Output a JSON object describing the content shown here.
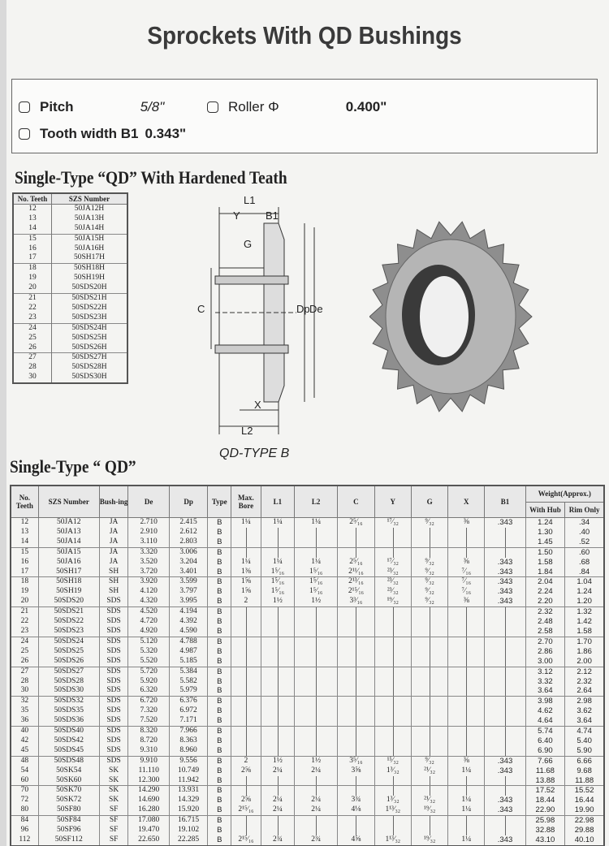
{
  "title": "Sprockets With QD Bushings",
  "specs": {
    "pitch_label": "Pitch",
    "pitch_value": "5/8\"",
    "roller_label": "Roller Φ",
    "roller_value": "0.400\"",
    "tooth_label": "Tooth width B1",
    "tooth_value": "0.343\""
  },
  "hardened": {
    "heading": "Single-Type “QD” With Hardened Teath",
    "headers": [
      "No. Teeth",
      "SZS Number"
    ],
    "rows": [
      [
        "12",
        "50JA12H"
      ],
      [
        "13",
        "50JA13H"
      ],
      [
        "14",
        "50JA14H"
      ],
      [
        "15",
        "50JA15H"
      ],
      [
        "16",
        "50JA16H"
      ],
      [
        "17",
        "50SH17H"
      ],
      [
        "18",
        "50SH18H"
      ],
      [
        "19",
        "50SH19H"
      ],
      [
        "20",
        "50SDS20H"
      ],
      [
        "21",
        "50SDS21H"
      ],
      [
        "22",
        "50SDS22H"
      ],
      [
        "23",
        "50SDS23H"
      ],
      [
        "24",
        "50SDS24H"
      ],
      [
        "25",
        "50SDS25H"
      ],
      [
        "26",
        "50SDS26H"
      ],
      [
        "27",
        "50SDS27H"
      ],
      [
        "28",
        "50SDS28H"
      ],
      [
        "30",
        "50SDS30H"
      ]
    ]
  },
  "diagram": {
    "labels": [
      "L1",
      "Y",
      "B1",
      "G",
      "C",
      "Dp",
      "De",
      "X",
      "L2"
    ],
    "caption": "QD-TYPE B"
  },
  "single": {
    "heading": "Single-Type “ QD”",
    "weight_header": "Weight(Approx.)",
    "headers": [
      "No. Teeth",
      "SZS Number",
      "Bush-ing",
      "De",
      "Dp",
      "Type",
      "Max. Bore",
      "L1",
      "L2",
      "C",
      "Y",
      "G",
      "X",
      "B1",
      "With Hub",
      "Rim Only"
    ],
    "rows": [
      [
        "12",
        "50JA12",
        "JA",
        "2.710",
        "2.415",
        "B",
        "1¼",
        "1¼",
        "1¼",
        "2⁵⁄₁₆",
        "¹⁷⁄₃₂",
        "⁹⁄₃₂",
        "⅜",
        ".343",
        "1.24",
        ".34"
      ],
      [
        "13",
        "50JA13",
        "JA",
        "2.910",
        "2.612",
        "B",
        "",
        "",
        "",
        "",
        "",
        "",
        "",
        "",
        "1.30",
        ".40"
      ],
      [
        "14",
        "50JA14",
        "JA",
        "3.110",
        "2.803",
        "B",
        "",
        "",
        "",
        "",
        "",
        "",
        "",
        "",
        "1.45",
        ".52"
      ],
      [
        "15",
        "50JA15",
        "JA",
        "3.320",
        "3.006",
        "B",
        "",
        "",
        "",
        "",
        "",
        "",
        "",
        "",
        "1.50",
        ".60"
      ],
      [
        "16",
        "50JA16",
        "JA",
        "3.520",
        "3.204",
        "B",
        "1¼",
        "1¼",
        "1¼",
        "2⁵⁄₁₆",
        "¹⁷⁄₃₂",
        "⁹⁄₃₂",
        "⅜",
        ".343",
        "1.58",
        ".68"
      ],
      [
        "17",
        "50SH17",
        "SH",
        "3.720",
        "3.401",
        "B",
        "1⅜",
        "1⁵⁄₁₆",
        "1⁵⁄₁₆",
        "2¹¹⁄₁₆",
        "²³⁄₃₂",
        "⁹⁄₃₂",
        "⁷⁄₁₆",
        ".343",
        "1.84",
        ".84"
      ],
      [
        "18",
        "50SH18",
        "SH",
        "3.920",
        "3.599",
        "B",
        "1⅝",
        "1⁵⁄₁₆",
        "1⁵⁄₁₆",
        "2¹³⁄₁₆",
        "²³⁄₃₂",
        "⁹⁄₃₂",
        "⁷⁄₁₆",
        ".343",
        "2.04",
        "1.04"
      ],
      [
        "19",
        "50SH19",
        "SH",
        "4.120",
        "3.797",
        "B",
        "1⅝",
        "1⁵⁄₁₆",
        "1⁵⁄₁₆",
        "2¹⁵⁄₁₆",
        "²³⁄₃₂",
        "⁹⁄₃₂",
        "⁷⁄₁₆",
        ".343",
        "2.24",
        "1.24"
      ],
      [
        "20",
        "50SDS20",
        "SDS",
        "4.320",
        "3.995",
        "B",
        "2",
        "1½",
        "1½",
        "3³⁄₁₆",
        "¹⁹⁄₃₂",
        "⁹⁄₃₂",
        "⅜",
        ".343",
        "2.20",
        "1.20"
      ],
      [
        "21",
        "50SDS21",
        "SDS",
        "4.520",
        "4.194",
        "B",
        "",
        "",
        "",
        "",
        "",
        "",
        "",
        "",
        "2.32",
        "1.32"
      ],
      [
        "22",
        "50SDS22",
        "SDS",
        "4.720",
        "4.392",
        "B",
        "",
        "",
        "",
        "",
        "",
        "",
        "",
        "",
        "2.48",
        "1.42"
      ],
      [
        "23",
        "50SDS23",
        "SDS",
        "4.920",
        "4.590",
        "B",
        "",
        "",
        "",
        "",
        "",
        "",
        "",
        "",
        "2.58",
        "1.58"
      ],
      [
        "24",
        "50SDS24",
        "SDS",
        "5.120",
        "4.788",
        "B",
        "",
        "",
        "",
        "",
        "",
        "",
        "",
        "",
        "2.70",
        "1.70"
      ],
      [
        "25",
        "50SDS25",
        "SDS",
        "5.320",
        "4.987",
        "B",
        "",
        "",
        "",
        "",
        "",
        "",
        "",
        "",
        "2.86",
        "1.86"
      ],
      [
        "26",
        "50SDS26",
        "SDS",
        "5.520",
        "5.185",
        "B",
        "",
        "",
        "",
        "",
        "",
        "",
        "",
        "",
        "3.00",
        "2.00"
      ],
      [
        "27",
        "50SDS27",
        "SDS",
        "5.720",
        "5.384",
        "B",
        "",
        "",
        "",
        "",
        "",
        "",
        "",
        "",
        "3.12",
        "2.12"
      ],
      [
        "28",
        "50SDS28",
        "SDS",
        "5.920",
        "5.582",
        "B",
        "",
        "",
        "",
        "",
        "",
        "",
        "",
        "",
        "3.32",
        "2.32"
      ],
      [
        "30",
        "50SDS30",
        "SDS",
        "6.320",
        "5.979",
        "B",
        "",
        "",
        "",
        "",
        "",
        "",
        "",
        "",
        "3.64",
        "2.64"
      ],
      [
        "32",
        "50SDS32",
        "SDS",
        "6.720",
        "6.376",
        "B",
        "",
        "",
        "",
        "",
        "",
        "",
        "",
        "",
        "3.98",
        "2.98"
      ],
      [
        "35",
        "50SDS35",
        "SDS",
        "7.320",
        "6.972",
        "B",
        "",
        "",
        "",
        "",
        "",
        "",
        "",
        "",
        "4.62",
        "3.62"
      ],
      [
        "36",
        "50SDS36",
        "SDS",
        "7.520",
        "7.171",
        "B",
        "",
        "",
        "",
        "",
        "",
        "",
        "",
        "",
        "4.64",
        "3.64"
      ],
      [
        "40",
        "50SDS40",
        "SDS",
        "8.320",
        "7.966",
        "B",
        "",
        "",
        "",
        "",
        "",
        "",
        "",
        "",
        "5.74",
        "4.74"
      ],
      [
        "42",
        "50SDS42",
        "SDS",
        "8.720",
        "8.363",
        "B",
        "",
        "",
        "",
        "",
        "",
        "",
        "",
        "",
        "6.40",
        "5.40"
      ],
      [
        "45",
        "50SDS45",
        "SDS",
        "9.310",
        "8.960",
        "B",
        "",
        "",
        "",
        "",
        "",
        "",
        "",
        "",
        "6.90",
        "5.90"
      ],
      [
        "48",
        "50SDS48",
        "SDS",
        "9.910",
        "9.556",
        "B",
        "2",
        "1½",
        "1½",
        "3⁵⁄₁₆",
        "¹⁵⁄₃₂",
        "⁹⁄₃₂",
        "⅜",
        ".343",
        "7.66",
        "6.66"
      ],
      [
        "54",
        "50SK54",
        "SK",
        "11.110",
        "10.749",
        "B",
        "2⅝",
        "2¼",
        "2¼",
        "3⅝",
        "1³⁄₃₂",
        "²¹⁄₃₂",
        "1¼",
        ".343",
        "11.68",
        "9.68"
      ],
      [
        "60",
        "50SK60",
        "SK",
        "12.300",
        "11.942",
        "B",
        "",
        "",
        "",
        "",
        "",
        "",
        "",
        "",
        "13.88",
        "11.88"
      ],
      [
        "70",
        "50SK70",
        "SK",
        "14.290",
        "13.931",
        "B",
        "",
        "",
        "",
        "",
        "",
        "",
        "",
        "",
        "17.52",
        "15.52"
      ],
      [
        "72",
        "50SK72",
        "SK",
        "14.690",
        "14.329",
        "B",
        "2⅝",
        "2¼",
        "2¼",
        "3¾",
        "1³⁄₃₂",
        "²¹⁄₃₂",
        "1¼",
        ".343",
        "18.44",
        "16.44"
      ],
      [
        "80",
        "50SF80",
        "SF",
        "16.280",
        "15.920",
        "B",
        "2¹⁵⁄₁₆",
        "2¼",
        "2¼",
        "4⅛",
        "1¹³⁄₃₂",
        "¹⁹⁄₃₂",
        "1¼",
        ".343",
        "22.90",
        "19.90"
      ],
      [
        "84",
        "50SF84",
        "SF",
        "17.080",
        "16.715",
        "B",
        "",
        "",
        "",
        "",
        "",
        "",
        "",
        "",
        "25.98",
        "22.98"
      ],
      [
        "96",
        "50SF96",
        "SF",
        "19.470",
        "19.102",
        "B",
        "",
        "",
        "",
        "",
        "",
        "",
        "",
        "",
        "32.88",
        "29.88"
      ],
      [
        "112",
        "50SF112",
        "SF",
        "22.650",
        "22.285",
        "B",
        "2¹⁵⁄₁₆",
        "2¾",
        "2¾",
        "4⅝",
        "1¹³⁄₃₂",
        "¹⁹⁄₃₂",
        "1¼",
        ".343",
        "43.10",
        "40.10"
      ]
    ]
  }
}
